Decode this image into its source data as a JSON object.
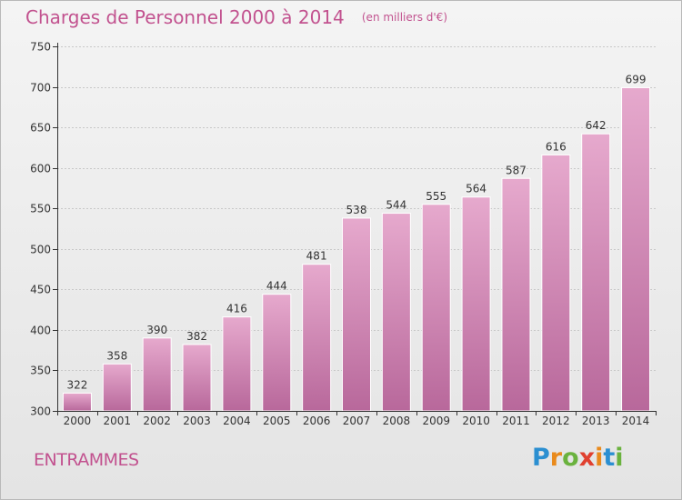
{
  "title": "Charges de Personnel 2000 à 2014",
  "subtitle": "(en milliers d'€)",
  "location": "ENTRAMMES",
  "logo": {
    "letters": [
      "P",
      "r",
      "o",
      "x",
      "i",
      "t",
      "i"
    ],
    "colors": [
      "#2b8fd1",
      "#e98a1c",
      "#6ab23e",
      "#e0402f",
      "#e98a1c",
      "#2b8fd1",
      "#6ab23e"
    ]
  },
  "colors": {
    "bar_fill_top": "#e6a9cd",
    "bar_fill_bottom": "#b8689b",
    "bar_stroke": "#ffffff",
    "axis": "#333333",
    "gridline": "#c8c8c8",
    "accent": "#c2528f"
  },
  "chart_data": {
    "type": "bar",
    "title": "Charges de Personnel 2000 à 2014",
    "xlabel": "",
    "ylabel": "",
    "categories": [
      "2000",
      "2001",
      "2002",
      "2003",
      "2004",
      "2005",
      "2006",
      "2007",
      "2008",
      "2009",
      "2010",
      "2011",
      "2012",
      "2013",
      "2014"
    ],
    "values": [
      322,
      358,
      390,
      382,
      416,
      444,
      481,
      538,
      544,
      555,
      564,
      587,
      616,
      642,
      699
    ],
    "ylim": [
      300,
      750
    ],
    "yticks": [
      300,
      350,
      400,
      450,
      500,
      550,
      600,
      650,
      700,
      750
    ],
    "grid": true
  }
}
